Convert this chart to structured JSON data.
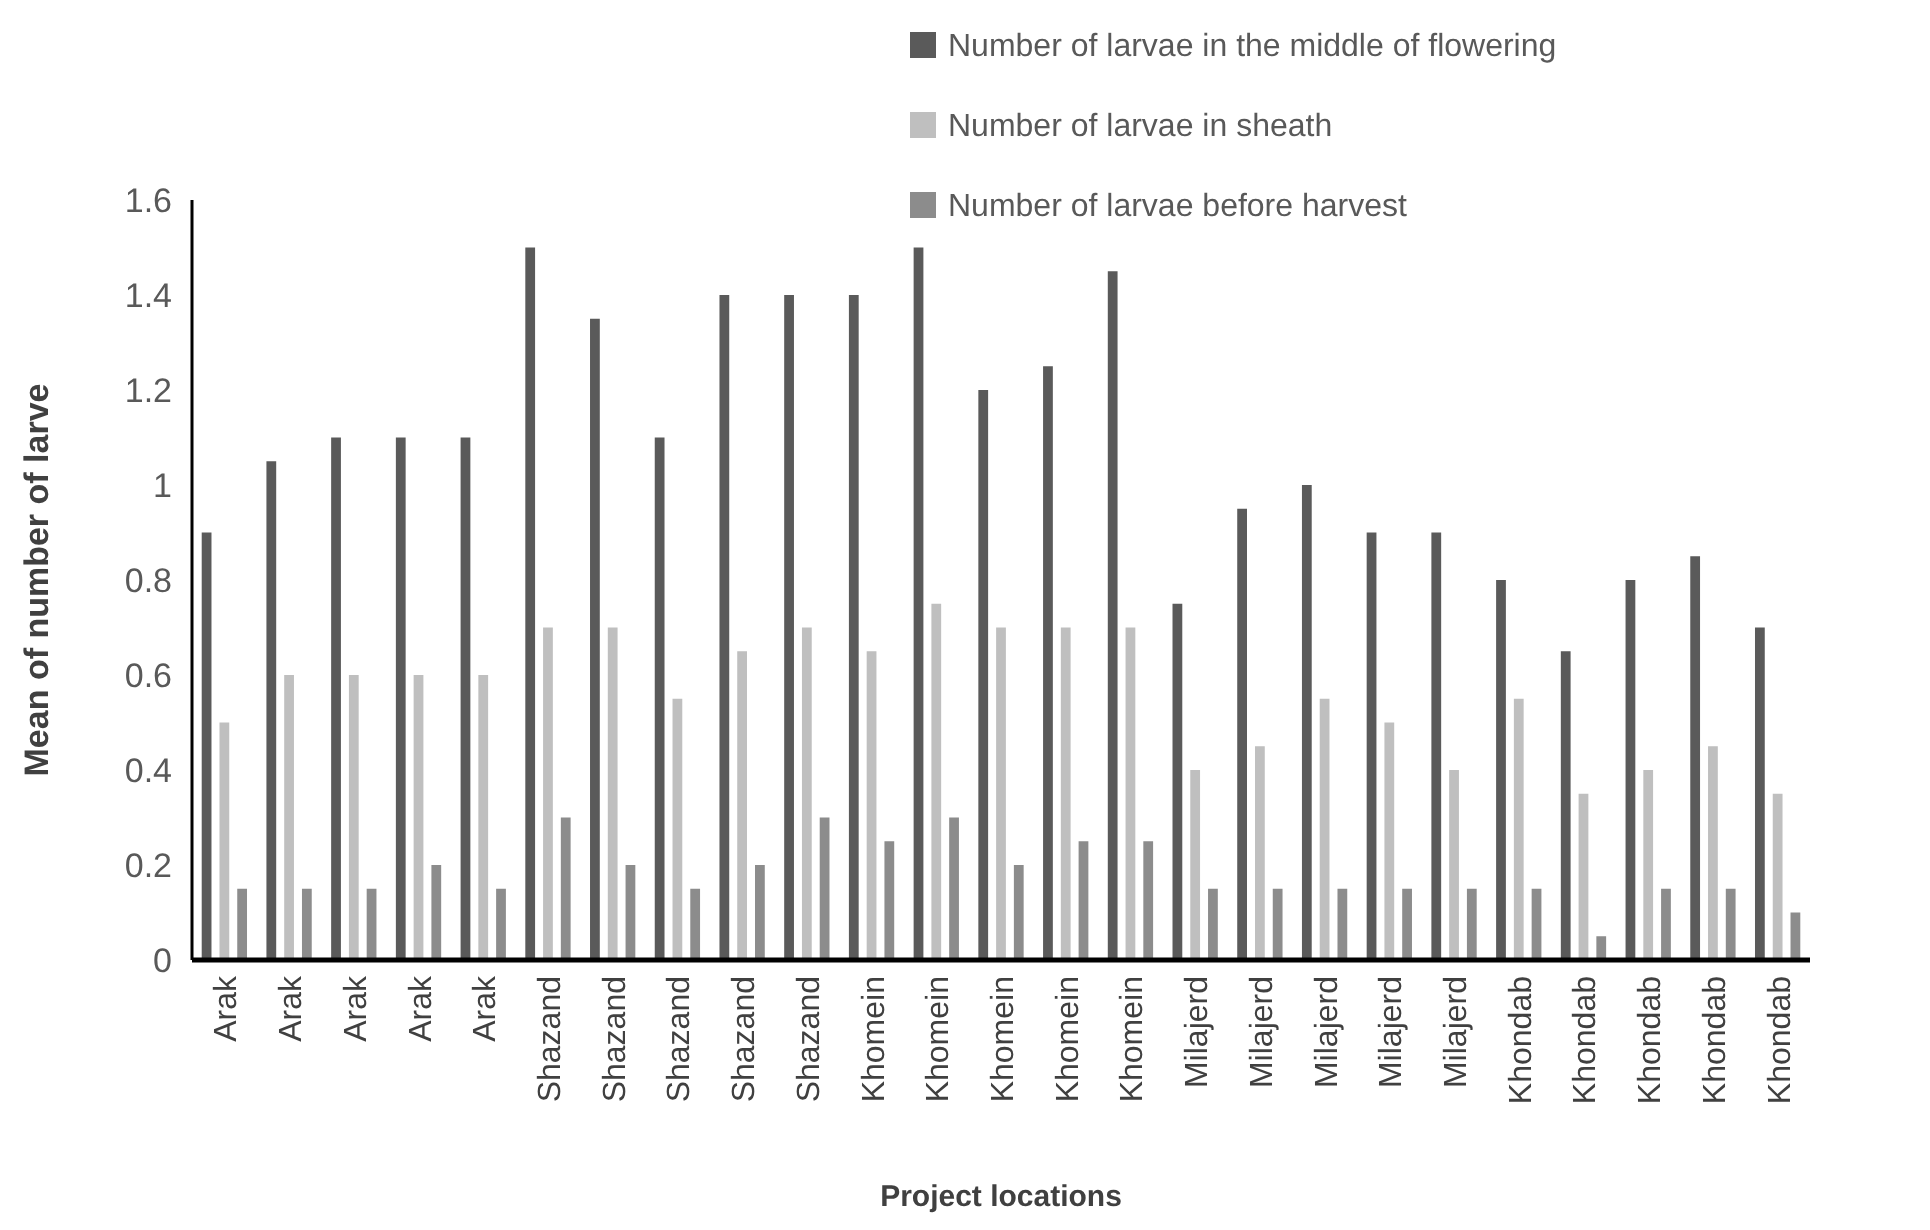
{
  "chart_data": {
    "type": "bar",
    "xlabel": "Project locations",
    "ylabel": "Mean of number of larve",
    "categories": [
      "Arak",
      "Arak",
      "Arak",
      "Arak",
      "Arak",
      "Shazand",
      "Shazand",
      "Shazand",
      "Shazand",
      "Shazand",
      "Khomein",
      "Khomein",
      "Khomein",
      "Khomein",
      "Khomein",
      "Milajerd",
      "Milajerd",
      "Milajerd",
      "Milajerd",
      "Milajerd",
      "Khondab",
      "Khondab",
      "Khondab",
      "Khondab",
      "Khondab"
    ],
    "series": [
      {
        "name": "Number of larvae in the middle of flowering",
        "color": "#5a5a5a",
        "values": [
          0.9,
          1.05,
          1.1,
          1.1,
          1.1,
          1.5,
          1.35,
          1.1,
          1.4,
          1.4,
          1.4,
          1.5,
          1.2,
          1.25,
          1.45,
          0.75,
          0.95,
          1.0,
          0.9,
          0.9,
          0.8,
          0.65,
          0.8,
          0.85,
          0.7
        ]
      },
      {
        "name": "Number of larvae in sheath",
        "color": "#bfbfbf",
        "values": [
          0.5,
          0.6,
          0.6,
          0.6,
          0.6,
          0.7,
          0.7,
          0.55,
          0.65,
          0.7,
          0.65,
          0.75,
          0.7,
          0.7,
          0.7,
          0.4,
          0.45,
          0.55,
          0.5,
          0.4,
          0.55,
          0.35,
          0.4,
          0.45,
          0.35
        ]
      },
      {
        "name": "Number of larvae before harvest",
        "color": "#8c8c8c",
        "values": [
          0.15,
          0.15,
          0.15,
          0.2,
          0.15,
          0.3,
          0.2,
          0.15,
          0.2,
          0.3,
          0.25,
          0.3,
          0.2,
          0.25,
          0.25,
          0.15,
          0.15,
          0.15,
          0.15,
          0.15,
          0.15,
          0.05,
          0.15,
          0.15,
          0.1
        ]
      }
    ],
    "ylim": [
      0,
      1.6
    ],
    "yticks": [
      0,
      0.2,
      0.4,
      0.6,
      0.8,
      1,
      1.2,
      1.4,
      1.6
    ],
    "grid": false,
    "legend": "top right"
  }
}
